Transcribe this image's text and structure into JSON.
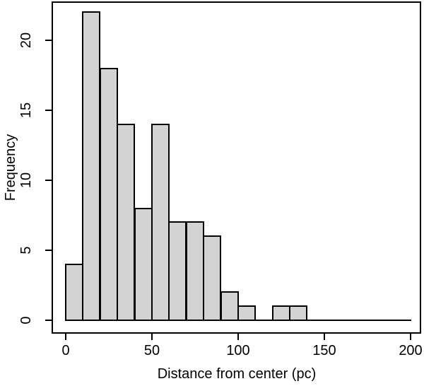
{
  "figure": {
    "title": "",
    "background": "#ffffff"
  },
  "chart_data": {
    "type": "bar",
    "subtype": "histogram",
    "title": "",
    "xlabel": "Distance from center (pc)",
    "ylabel": "Frequency",
    "bin_width": 10,
    "bin_edges": [
      0,
      10,
      20,
      30,
      40,
      50,
      60,
      70,
      80,
      90,
      100,
      110,
      120,
      130,
      140,
      150,
      160,
      170,
      180,
      190,
      200
    ],
    "counts": [
      4,
      22,
      18,
      14,
      8,
      14,
      7,
      7,
      6,
      2,
      1,
      0,
      1,
      1,
      0,
      0,
      0,
      0,
      0,
      0
    ],
    "total_count": 105,
    "xlim": [
      0,
      200
    ],
    "ylim": [
      0,
      22
    ],
    "x_ticks": [
      0,
      50,
      100,
      150,
      200
    ],
    "y_ticks": [
      0,
      5,
      10,
      15,
      20
    ],
    "x_tick_labels": [
      "0",
      "50",
      "100",
      "150",
      "200"
    ],
    "y_tick_labels": [
      "0",
      "5",
      "10",
      "15",
      "20"
    ],
    "grid": false,
    "legend": false,
    "bar_fill": "#d3d3d3",
    "bar_border": "#000000",
    "axis_color": "#000000",
    "text_color": "#000000"
  }
}
